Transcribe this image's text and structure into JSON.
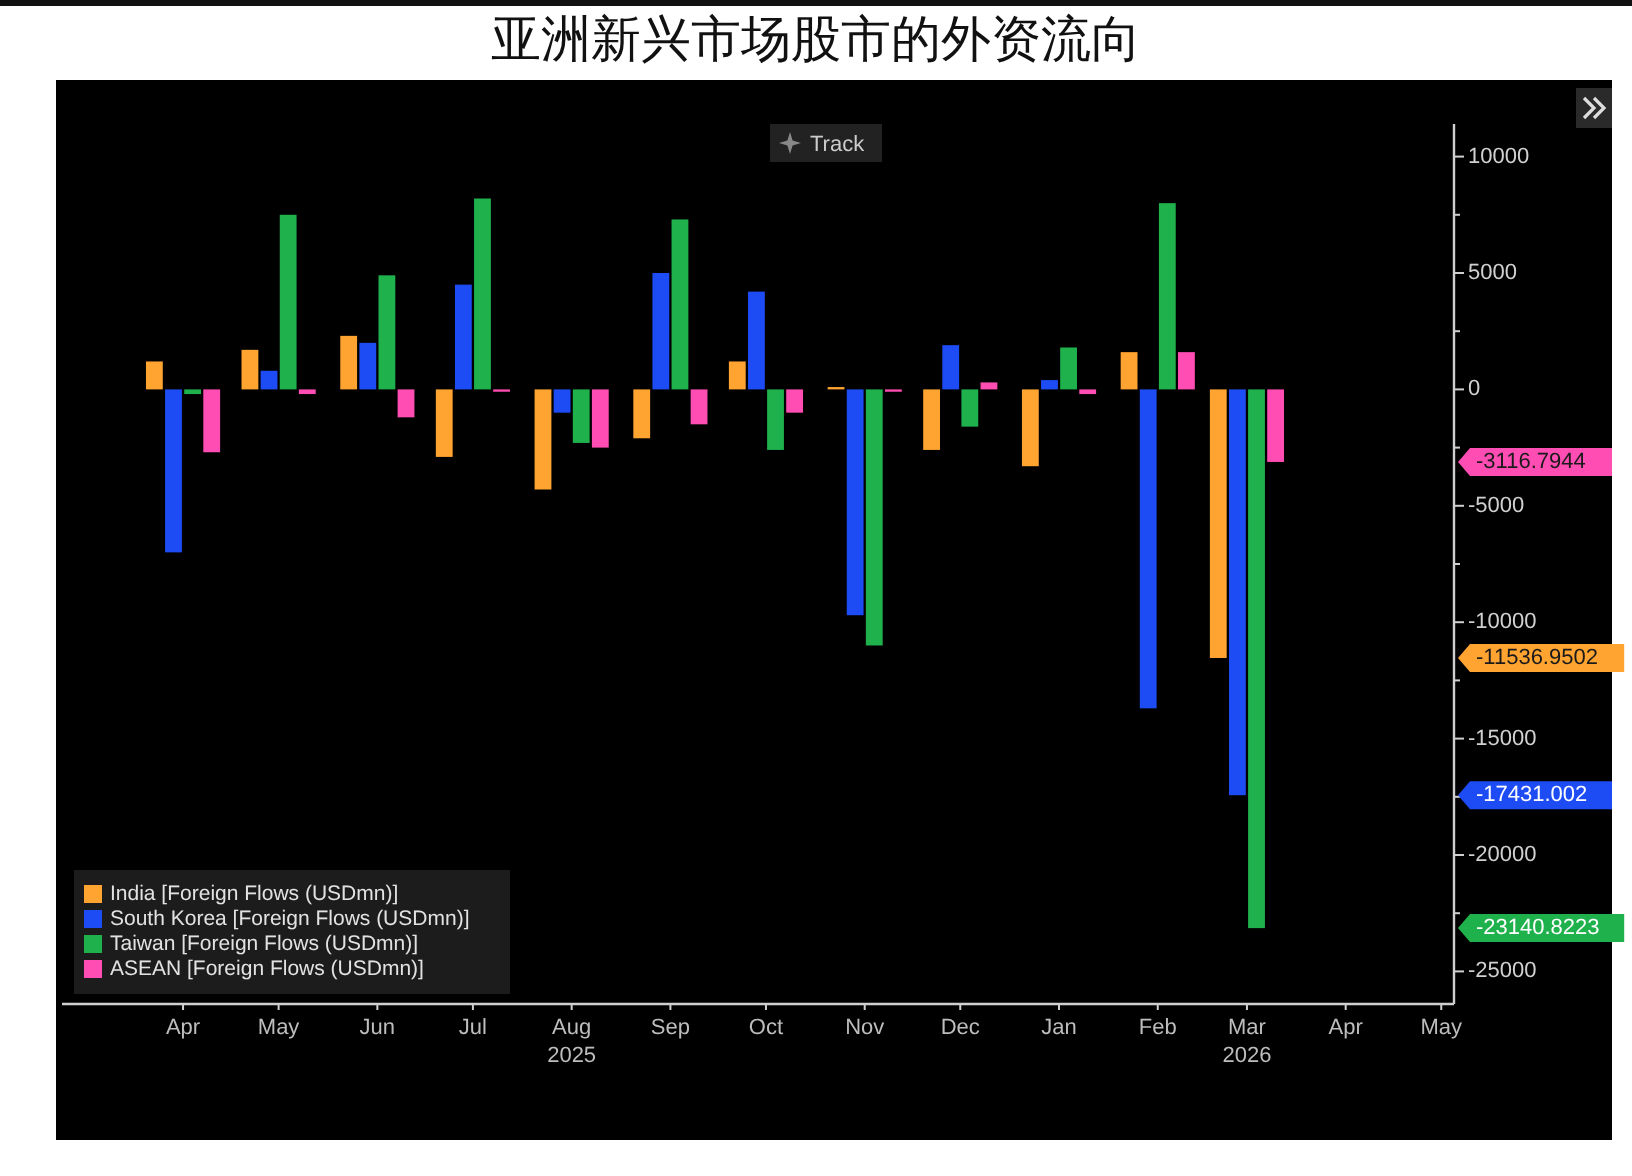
{
  "chart_data": {
    "type": "bar",
    "title": "亚洲新兴市场股市的外资流向",
    "annotations": [
      "Track",
      "-11536.9502",
      "-17431.002",
      "-23140.8223",
      "-3116.7944"
    ],
    "x": [
      "2025-04",
      "2025-05",
      "2025-06",
      "2025-07",
      "2025-08",
      "2025-09",
      "2025-10",
      "2025-11",
      "2025-12",
      "2026-01",
      "2026-02",
      "2026-03"
    ],
    "series": [
      {
        "name": "India [Foreign Flows (USDmn)]",
        "color": "#ffa431",
        "values": [
          1200,
          1700,
          2300,
          -2900,
          -4300,
          -2100,
          1200,
          100,
          -2600,
          -3300,
          1600,
          -11536.9502
        ]
      },
      {
        "name": "South Korea [Foreign Flows (USDmn)]",
        "color": "#1d4cf5",
        "values": [
          -7000,
          800,
          2000,
          4500,
          -1000,
          5000,
          4200,
          -9700,
          1900,
          400,
          -13700,
          -17431.002
        ]
      },
      {
        "name": "Taiwan [Foreign Flows (USDmn)]",
        "color": "#1fb14c",
        "values": [
          -200,
          7500,
          4900,
          8200,
          -2300,
          7300,
          -2600,
          -11000,
          -1600,
          1800,
          8000,
          -23140.8223
        ]
      },
      {
        "name": "ASEAN [Foreign Flows (USDmn)]",
        "color": "#ff4db3",
        "values": [
          -2700,
          -200,
          -1200,
          -100,
          -2500,
          -1500,
          -1000,
          -100,
          300,
          -200,
          1600,
          -3116.7944
        ]
      }
    ],
    "xlim": [
      "2025-02-22",
      "2026-05-05"
    ],
    "xticks": [
      {
        "value": "2025-04",
        "label": "Apr"
      },
      {
        "value": "2025-05",
        "label": "May"
      },
      {
        "value": "2025-06",
        "label": "Jun"
      },
      {
        "value": "2025-07",
        "label": "Jul"
      },
      {
        "value": "2025-08",
        "label": "Aug\n2025"
      },
      {
        "value": "2025-09",
        "label": "Sep"
      },
      {
        "value": "2025-10",
        "label": "Oct"
      },
      {
        "value": "2025-11",
        "label": "Nov"
      },
      {
        "value": "2025-12",
        "label": "Dec"
      },
      {
        "value": "2026-01",
        "label": "Jan"
      },
      {
        "value": "2026-02",
        "label": "Feb"
      },
      {
        "value": "2026-03",
        "label": "Mar\n2026"
      },
      {
        "value": "2026-04",
        "label": "Apr"
      },
      {
        "value": "2026-05",
        "label": "May"
      }
    ],
    "ylim": [
      -26400,
      11400
    ],
    "yticks": [
      10000,
      {
        "value": 7500,
        "label": null
      },
      5000,
      {
        "value": 2500,
        "label": null
      },
      0,
      {
        "value": -2500,
        "label": null
      },
      -5000,
      {
        "value": -7500,
        "label": null
      },
      -10000,
      {
        "value": -12500,
        "label": null
      },
      -15000,
      {
        "value": -17500,
        "label": null
      },
      -20000,
      {
        "value": -22500,
        "label": null
      },
      -25000
    ],
    "legend": "bottom left"
  }
}
